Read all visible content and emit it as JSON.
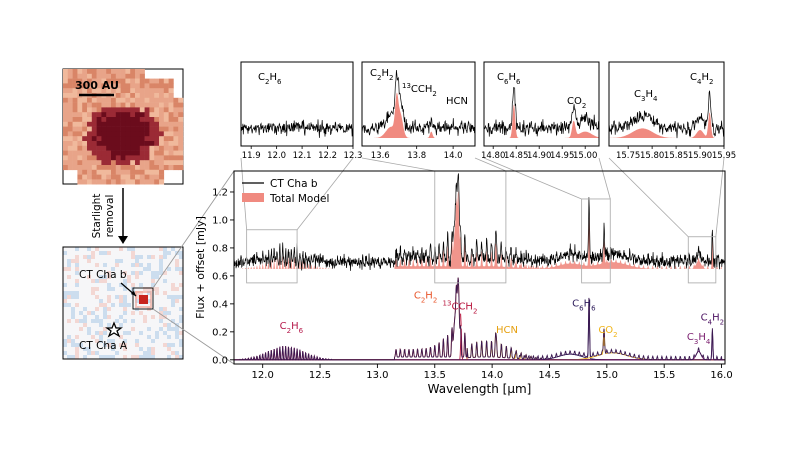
{
  "image_panels": {
    "before": {
      "scale_label": "300 AU"
    },
    "arrow_label_line1": "Starlight",
    "arrow_label_line2": "removal",
    "after": {
      "companion_label": "CT Cha b",
      "host_label": "CT Cha A"
    }
  },
  "colors": {
    "data_line": "#000000",
    "model_fill": "#f08a80",
    "c2h6": "#b5194a",
    "c2h2": "#e8552a",
    "c13ch2": "#b8143c",
    "hcn": "#e6a010",
    "c6h6": "#2b1a5a",
    "co2": "#f0b418",
    "c3h4": "#7a1d6e",
    "c4h2": "#4a1060",
    "total_model_line": "#3a1850"
  },
  "chart_data": [
    {
      "type": "line",
      "id": "main",
      "xlabel": "Wavelength [μm]",
      "ylabel": "Flux + offset [mJy]",
      "xlim": [
        11.75,
        16.03
      ],
      "ylim": [
        -0.03,
        1.35
      ],
      "xticks": [
        "12.0",
        "12.5",
        "13.0",
        "13.5",
        "14.0",
        "14.5",
        "15.0",
        "15.5",
        "16.0"
      ],
      "yticks": [
        "0.0",
        "0.2",
        "0.4",
        "0.6",
        "0.8",
        "1.0",
        "1.2"
      ],
      "legend": {
        "placement": "top-left",
        "entries": [
          {
            "name": "CT Cha b",
            "kind": "line"
          },
          {
            "name": "Total Model",
            "kind": "fill"
          }
        ]
      },
      "series": [
        {
          "name": "CT Cha b",
          "offset": 0.7,
          "continuum": 0.0,
          "noise_rms": 0.045,
          "features": [
            [
              13.71,
              0.55
            ],
            [
              13.69,
              0.35
            ],
            [
              14.84,
              0.25
            ],
            [
              14.97,
              0.12
            ],
            [
              15.92,
              0.15
            ]
          ]
        },
        {
          "name": "Total Model",
          "offset": 0.65,
          "baseline": 0.0
        }
      ],
      "molecule_curves": [
        {
          "name": "C2H6",
          "region": [
            11.8,
            12.55
          ],
          "peak": 0.1
        },
        {
          "name": "C2H2",
          "region": [
            13.2,
            13.75
          ],
          "peak": 0.55
        },
        {
          "name": "13CCH2",
          "region": [
            13.72,
            13.74
          ],
          "peak": 0.24
        },
        {
          "name": "HCN",
          "region": [
            13.8,
            14.2
          ],
          "peak": 0.17
        },
        {
          "name": "C6H6",
          "region": [
            14.84,
            14.85
          ],
          "peak": 0.43
        },
        {
          "name": "CO2",
          "region": [
            14.97,
            14.98
          ],
          "peak": 0.2
        },
        {
          "name": "C3H4",
          "region": [
            15.78,
            15.82
          ],
          "peak": 0.07
        },
        {
          "name": "C4H2",
          "region": [
            15.92,
            15.93
          ],
          "peak": 0.22
        }
      ],
      "annotations": [
        {
          "base": "C",
          "sub": "2",
          "tail": "H",
          "sub2": "6",
          "at": [
            12.25,
            0.22
          ],
          "color_key": "c2h6"
        },
        {
          "base": "C",
          "sub": "2",
          "tail": "H",
          "sub2": "2",
          "at": [
            13.42,
            0.44
          ],
          "color_key": "c2h2"
        },
        {
          "base": "",
          "sup": "13",
          "tail": "CCH",
          "sub2": "2",
          "at": [
            13.72,
            0.36
          ],
          "color_key": "c13ch2"
        },
        {
          "base": "HCN",
          "at": [
            14.13,
            0.19
          ],
          "color_key": "hcn"
        },
        {
          "base": "C",
          "sub": "6",
          "tail": "H",
          "sub2": "6",
          "at": [
            14.8,
            0.38
          ],
          "color_key": "c6h6"
        },
        {
          "base": "CO",
          "sub": "2",
          "at": [
            15.01,
            0.19
          ],
          "color_key": "co2"
        },
        {
          "base": "C",
          "sub": "3",
          "tail": "H",
          "sub2": "4",
          "at": [
            15.8,
            0.14
          ],
          "color_key": "c3h4"
        },
        {
          "base": "C",
          "sub": "4",
          "tail": "H",
          "sub2": "2",
          "at": [
            15.92,
            0.28
          ],
          "color_key": "c4h2"
        }
      ]
    },
    {
      "type": "line",
      "id": "inset-c2h6",
      "xlim": [
        11.86,
        12.3
      ],
      "ylim": [
        0,
        1
      ],
      "xticks": [
        "11.9",
        "12.0",
        "12.1",
        "12.2",
        "12.3"
      ],
      "label": {
        "base": "C",
        "sub": "2",
        "tail": "H",
        "sub2": "6"
      }
    },
    {
      "type": "line",
      "id": "inset-c2h2",
      "xlim": [
        13.5,
        14.12
      ],
      "ylim": [
        0,
        1
      ],
      "xticks": [
        "13.6",
        "13.8",
        "14.0"
      ],
      "labels": [
        {
          "base": "C",
          "sub": "2",
          "tail": "H",
          "sub2": "2"
        },
        {
          "base": "",
          "sup": "13",
          "tail": "CCH",
          "sub2": "2"
        },
        {
          "base": "HCN"
        }
      ]
    },
    {
      "type": "line",
      "id": "inset-c6h6",
      "xlim": [
        14.78,
        15.03
      ],
      "ylim": [
        0,
        1
      ],
      "xticks": [
        "14.80",
        "14.85",
        "14.90",
        "14.95",
        "15.00"
      ],
      "labels": [
        {
          "base": "C",
          "sub": "6",
          "tail": "H",
          "sub2": "6"
        },
        {
          "base": "CO",
          "sub": "2"
        }
      ]
    },
    {
      "type": "line",
      "id": "inset-c4h2",
      "xlim": [
        15.71,
        15.95
      ],
      "ylim": [
        0,
        1
      ],
      "xticks": [
        "15.75",
        "15.80",
        "15.85",
        "15.90",
        "15.95"
      ],
      "labels": [
        {
          "base": "C",
          "sub": "3",
          "tail": "H",
          "sub2": "4"
        },
        {
          "base": "C",
          "sub": "4",
          "tail": "H",
          "sub2": "2"
        }
      ]
    }
  ]
}
